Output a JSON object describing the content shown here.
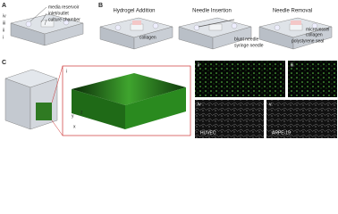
{
  "panel_a": {
    "label": "A",
    "layers": [
      "iv",
      "iii",
      "ii",
      "i"
    ],
    "callouts": [
      "media reservoir",
      "inlet/outlet",
      "culture chamber"
    ]
  },
  "panel_b": {
    "label": "B",
    "steps": [
      {
        "title": "Hydrogel Addition",
        "labels": [
          "collagen"
        ]
      },
      {
        "title": "Needle Insertion",
        "labels": [
          "blunt needle",
          "syringe needle"
        ]
      },
      {
        "title": "Needle Removal",
        "labels": [
          "microvessel",
          "collagen",
          "polystyrene seal"
        ]
      }
    ]
  },
  "panel_c": {
    "label": "C",
    "axis_labels": [
      "y",
      "z",
      "x"
    ],
    "images": [
      {
        "label": "i"
      },
      {
        "label": "ii"
      },
      {
        "label": "iii"
      },
      {
        "label": "iv",
        "caption": "HUVEC"
      },
      {
        "label": "v",
        "caption": "ARPE-19"
      }
    ]
  }
}
